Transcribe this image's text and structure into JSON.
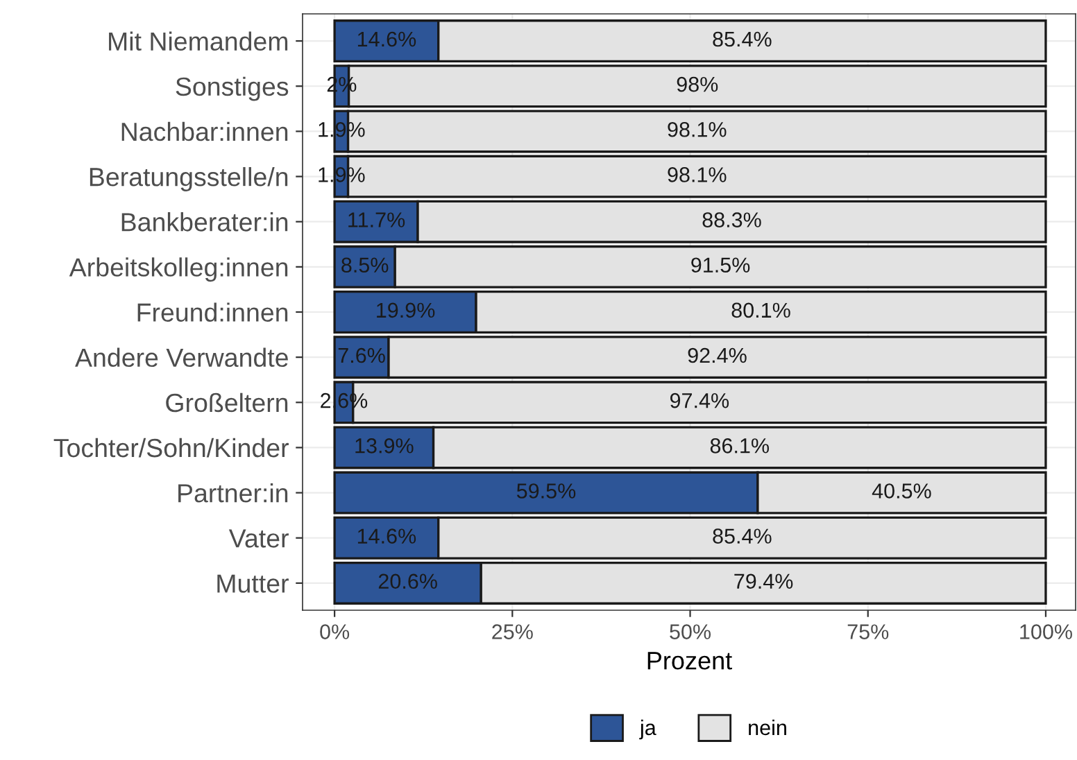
{
  "chart_data": {
    "type": "bar",
    "orientation": "horizontal",
    "stacked": true,
    "categories": [
      "Mit Niemandem",
      "Sonstiges",
      "Nachbar:innen",
      "Beratungsstelle/n",
      "Bankberater:in",
      "Arbeitskolleg:innen",
      "Freund:innen",
      "Andere Verwandte",
      "Großeltern",
      "Tochter/Sohn/Kinder",
      "Partner:in",
      "Vater",
      "Mutter"
    ],
    "series": [
      {
        "name": "ja",
        "color": "#2d5597",
        "values": [
          14.6,
          2,
          1.9,
          1.9,
          11.7,
          8.5,
          19.9,
          7.6,
          2.6,
          13.9,
          59.5,
          14.6,
          20.6
        ],
        "value_labels": [
          "14.6%",
          "2%",
          "1.9%",
          "1.9%",
          "11.7%",
          "8.5%",
          "19.9%",
          "7.6%",
          "2.6%",
          "13.9%",
          "59.5%",
          "14.6%",
          "20.6%"
        ]
      },
      {
        "name": "nein",
        "color": "#e3e3e3",
        "values": [
          85.4,
          98,
          98.1,
          98.1,
          88.3,
          91.5,
          80.1,
          92.4,
          97.4,
          86.1,
          40.5,
          85.4,
          79.4
        ],
        "value_labels": [
          "85.4%",
          "98%",
          "98.1%",
          "98.1%",
          "88.3%",
          "91.5%",
          "80.1%",
          "92.4%",
          "97.4%",
          "86.1%",
          "40.5%",
          "85.4%",
          "79.4%"
        ]
      }
    ],
    "xlabel": "Prozent",
    "xlim": [
      -4.5,
      104.2
    ],
    "xticks": [
      {
        "value": 0,
        "label": "0%"
      },
      {
        "value": 25,
        "label": "25%"
      },
      {
        "value": 50,
        "label": "50%"
      },
      {
        "value": 75,
        "label": "75%"
      },
      {
        "value": 100,
        "label": "100%"
      }
    ],
    "grid": true,
    "legend": "bottom"
  }
}
